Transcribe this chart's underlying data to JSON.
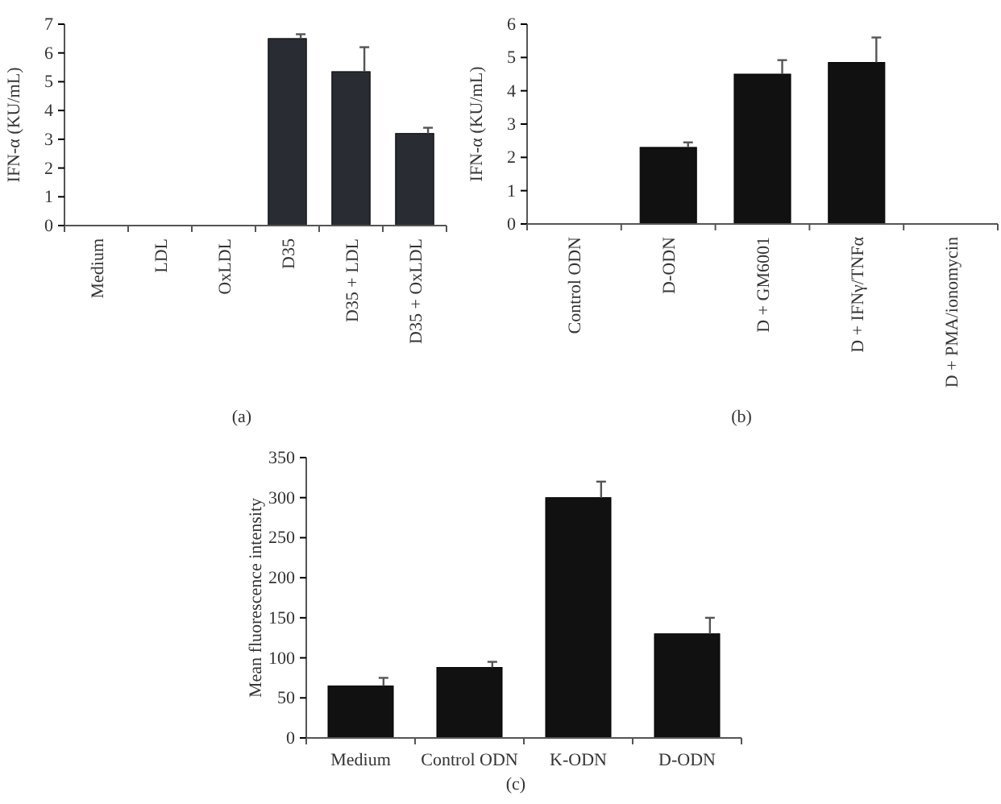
{
  "chart_data": [
    {
      "type": "bar",
      "ylabel": "IFN-α (KU/mL)",
      "categories": [
        "Medium",
        "LDL",
        "OxLDL",
        "D35",
        "D35 + LDL",
        "D35 + OxLDL"
      ],
      "values": [
        0,
        0,
        0,
        6.5,
        5.35,
        3.2
      ],
      "errors": [
        null,
        null,
        null,
        [
          6.5,
          6.65
        ],
        [
          5.35,
          6.2
        ],
        [
          3.2,
          3.4
        ]
      ],
      "color": "#2a2c33",
      "ylim": [
        0,
        7
      ],
      "yticks": [
        0,
        1,
        2,
        3,
        4,
        5,
        6,
        7
      ],
      "annotations": [
        "(a)"
      ]
    },
    {
      "type": "bar",
      "ylabel": "IFN-α (KU/mL)",
      "categories": [
        "Control ODN",
        "D-ODN",
        "D + GM6001",
        "D + IFNγ/TNFα",
        "D + PMA/ionomycin"
      ],
      "values": [
        0,
        2.3,
        4.5,
        4.85,
        0
      ],
      "errors": [
        null,
        [
          2.3,
          2.45
        ],
        [
          4.5,
          4.92
        ],
        [
          4.85,
          5.6
        ],
        null
      ],
      "color": "#111111",
      "ylim": [
        0,
        6
      ],
      "yticks": [
        0,
        1,
        2,
        3,
        4,
        5,
        6
      ],
      "annotations": [
        "(b)"
      ]
    },
    {
      "type": "bar",
      "ylabel": "Mean fluorescence intensity",
      "categories": [
        "Medium",
        "Control ODN",
        "K-ODN",
        "D-ODN"
      ],
      "values": [
        65,
        88,
        300,
        130
      ],
      "errors": [
        [
          65,
          75
        ],
        [
          88,
          95
        ],
        [
          300,
          320
        ],
        [
          130,
          150
        ]
      ],
      "color": "#111111",
      "ylim": [
        0,
        350
      ],
      "yticks": [
        0,
        50,
        100,
        150,
        200,
        250,
        300,
        350
      ],
      "annotations": [
        "(c)"
      ]
    }
  ]
}
